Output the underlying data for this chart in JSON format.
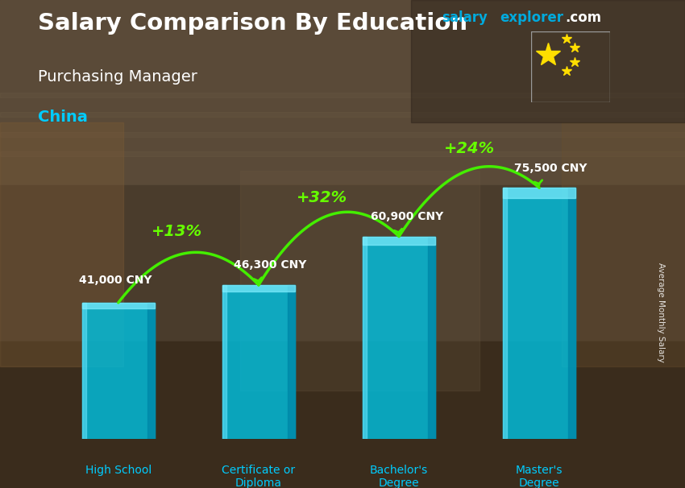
{
  "title": "Salary Comparison By Education",
  "subtitle": "Purchasing Manager",
  "country": "China",
  "categories": [
    "High School",
    "Certificate or\nDiploma",
    "Bachelor's\nDegree",
    "Master's\nDegree"
  ],
  "values": [
    41000,
    46300,
    60900,
    75500
  ],
  "value_labels": [
    "41,000 CNY",
    "46,300 CNY",
    "60,900 CNY",
    "75,500 CNY"
  ],
  "pct_labels": [
    "+13%",
    "+32%",
    "+24%"
  ],
  "bar_color_main": "#00BFDF",
  "bar_color_light": "#50DFFF",
  "bar_color_dark": "#0090BB",
  "bar_color_right": "#008AAA",
  "pct_color": "#66FF00",
  "arrow_color": "#44EE00",
  "title_color": "#FFFFFF",
  "subtitle_color": "#FFFFFF",
  "country_color": "#00CCFF",
  "value_label_color": "#FFFFFF",
  "xlabel_color": "#00CCFF",
  "ylabel_text": "Average Monthly Salary",
  "brand_salary_color": "#00CCFF",
  "brand_explorer_color": "#00CCFF",
  "brand_com_color": "#FFFFFF",
  "ylim": [
    0,
    85000
  ],
  "bar_width": 0.52,
  "bg_top": "#5a4a35",
  "bg_mid": "#4a3a28",
  "bg_bot": "#3a2a18"
}
